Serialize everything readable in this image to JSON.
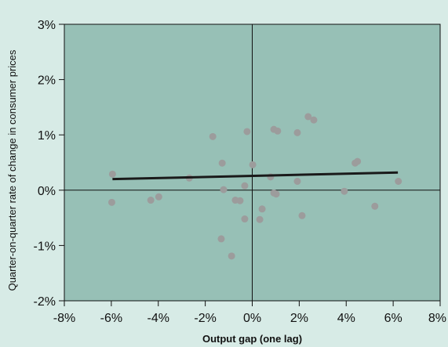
{
  "chart_data": {
    "type": "scatter",
    "title": "",
    "xlabel": "Output gap (one lag)",
    "ylabel": "Quarter-on-quarter rate of change in consumer prices",
    "xlim": [
      -8,
      8
    ],
    "ylim": [
      -2,
      3
    ],
    "x_ticks": [
      -8,
      -6,
      -4,
      -2,
      0,
      2,
      4,
      6,
      8
    ],
    "y_ticks": [
      -2,
      -1,
      0,
      1,
      2,
      3
    ],
    "x_tick_labels": [
      "-8%",
      "-6%",
      "-4%",
      "-2%",
      "0%",
      "2%",
      "4%",
      "6%",
      "8%"
    ],
    "y_tick_labels": [
      "-2%",
      "-1%",
      "0%",
      "1%",
      "2%",
      "3%"
    ],
    "grid": false,
    "zero_lines": true,
    "colors": {
      "background": "#d7ebe6",
      "plot": "#97c0b6",
      "point": "#9c9c9c",
      "trend": "#1a1a1a",
      "axis": "#111111"
    },
    "points": [
      {
        "x": -5.95,
        "y": 0.29
      },
      {
        "x": -5.98,
        "y": -0.22
      },
      {
        "x": -4.32,
        "y": -0.18
      },
      {
        "x": -3.98,
        "y": -0.12
      },
      {
        "x": -2.68,
        "y": 0.22
      },
      {
        "x": -1.68,
        "y": 0.97
      },
      {
        "x": -1.28,
        "y": 0.49
      },
      {
        "x": -1.22,
        "y": 0.01
      },
      {
        "x": -1.32,
        "y": -0.88
      },
      {
        "x": -0.88,
        "y": -1.19
      },
      {
        "x": -0.72,
        "y": -0.18
      },
      {
        "x": -0.52,
        "y": -0.19
      },
      {
        "x": -0.32,
        "y": 0.08
      },
      {
        "x": -0.32,
        "y": -0.52
      },
      {
        "x": -0.22,
        "y": 1.06
      },
      {
        "x": 0.02,
        "y": 0.46
      },
      {
        "x": 0.32,
        "y": -0.53
      },
      {
        "x": 0.42,
        "y": -0.34
      },
      {
        "x": 0.78,
        "y": 0.24
      },
      {
        "x": 0.92,
        "y": -0.05
      },
      {
        "x": 1.02,
        "y": -0.07
      },
      {
        "x": 0.92,
        "y": 1.1
      },
      {
        "x": 1.08,
        "y": 1.07
      },
      {
        "x": 1.92,
        "y": 0.16
      },
      {
        "x": 1.92,
        "y": 1.04
      },
      {
        "x": 2.12,
        "y": -0.46
      },
      {
        "x": 2.38,
        "y": 1.33
      },
      {
        "x": 2.62,
        "y": 1.27
      },
      {
        "x": 3.92,
        "y": -0.02
      },
      {
        "x": 4.38,
        "y": 0.49
      },
      {
        "x": 4.48,
        "y": 0.52
      },
      {
        "x": 5.22,
        "y": -0.29
      },
      {
        "x": 6.22,
        "y": 0.16
      }
    ],
    "trend_line": {
      "x": [
        -5.95,
        6.2
      ],
      "y": [
        0.2,
        0.32
      ]
    }
  }
}
